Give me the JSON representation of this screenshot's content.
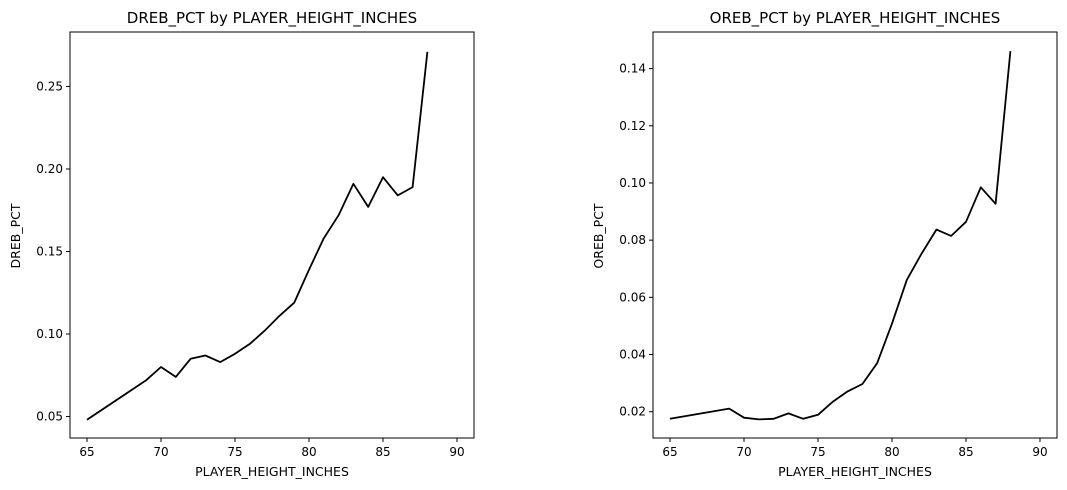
{
  "chart_data": [
    {
      "type": "line",
      "title": "DREB_PCT by PLAYER_HEIGHT_INCHES",
      "xlabel": "PLAYER_HEIGHT_INCHES",
      "ylabel": "DREB_PCT",
      "xlim": [
        63.85,
        91.15
      ],
      "ylim": [
        0.037,
        0.283
      ],
      "xticks": [
        65,
        70,
        75,
        80,
        85,
        90
      ],
      "xtick_labels": [
        "65",
        "70",
        "75",
        "80",
        "85",
        "90"
      ],
      "yticks": [
        0.05,
        0.1,
        0.15,
        0.2,
        0.25
      ],
      "ytick_labels": [
        "0.05",
        "0.10",
        "0.15",
        "0.20",
        "0.25"
      ],
      "grid": false,
      "color": "#000000",
      "series": [
        {
          "x": [
            65,
            69,
            70,
            71,
            72,
            73,
            74,
            75,
            76,
            77,
            78,
            79,
            80,
            81,
            82,
            83,
            84,
            85,
            86,
            87,
            88
          ],
          "values": [
            0.048,
            0.072,
            0.08,
            0.074,
            0.085,
            0.087,
            0.083,
            0.088,
            0.094,
            0.102,
            0.111,
            0.119,
            0.139,
            0.158,
            0.172,
            0.191,
            0.177,
            0.195,
            0.184,
            0.189,
            0.271
          ]
        }
      ]
    },
    {
      "type": "line",
      "title": "OREB_PCT by PLAYER_HEIGHT_INCHES",
      "xlabel": "PLAYER_HEIGHT_INCHES",
      "ylabel": "OREB_PCT",
      "xlim": [
        63.85,
        91.15
      ],
      "ylim": [
        0.0108,
        0.1528
      ],
      "xticks": [
        65,
        70,
        75,
        80,
        85,
        90
      ],
      "xtick_labels": [
        "65",
        "70",
        "75",
        "80",
        "85",
        "90"
      ],
      "yticks": [
        0.02,
        0.04,
        0.06,
        0.08,
        0.1,
        0.12,
        0.14
      ],
      "ytick_labels": [
        "0.02",
        "0.04",
        "0.06",
        "0.08",
        "0.10",
        "0.12",
        "0.14"
      ],
      "grid": false,
      "color": "#000000",
      "series": [
        {
          "x": [
            65,
            69,
            70,
            71,
            72,
            73,
            74,
            75,
            76,
            77,
            78,
            79,
            80,
            81,
            82,
            83,
            84,
            85,
            86,
            87,
            88
          ],
          "values": [
            0.0175,
            0.0211,
            0.0179,
            0.0173,
            0.0175,
            0.0194,
            0.0175,
            0.0189,
            0.0235,
            0.0271,
            0.0297,
            0.037,
            0.0508,
            0.0661,
            0.0753,
            0.0837,
            0.0815,
            0.0864,
            0.0985,
            0.0927,
            0.1461
          ]
        }
      ]
    }
  ]
}
